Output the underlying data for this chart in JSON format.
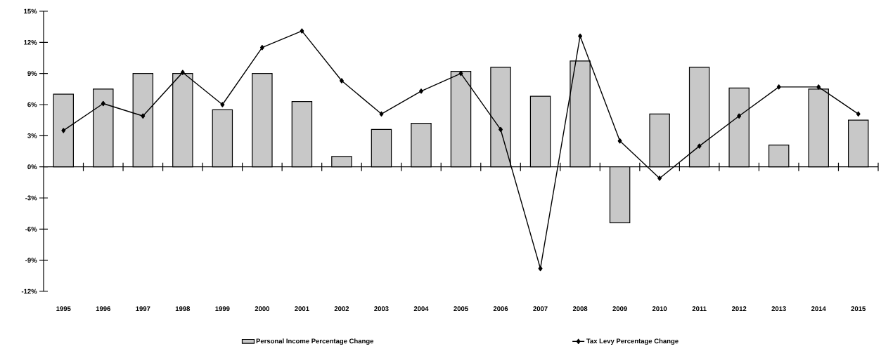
{
  "chart_data": {
    "type": "bar",
    "categories": [
      "1995",
      "1996",
      "1997",
      "1998",
      "1999",
      "2000",
      "2001",
      "2002",
      "2003",
      "2004",
      "2005",
      "2006",
      "2007",
      "2008",
      "2009",
      "2010",
      "2011",
      "2012",
      "2013",
      "2014",
      "2015"
    ],
    "series": [
      {
        "name": "Personal Income Percentage Change",
        "color": "#c8c8c8",
        "values": [
          7.0,
          7.5,
          9.0,
          9.0,
          5.5,
          9.0,
          6.3,
          1.0,
          3.6,
          4.2,
          9.2,
          9.6,
          6.8,
          10.2,
          -5.4,
          5.1,
          9.6,
          7.6,
          2.1,
          7.5,
          4.5
        ]
      },
      {
        "name": "Tax Levy Percentage Change",
        "type": "line",
        "color": "#000000",
        "values": [
          3.5,
          6.1,
          4.9,
          9.1,
          6.0,
          11.5,
          13.1,
          8.3,
          5.1,
          7.3,
          9.0,
          3.6,
          -9.8,
          12.6,
          2.5,
          -1.1,
          2.0,
          4.9,
          7.7,
          7.7,
          5.1
        ]
      }
    ],
    "marker": "diamond",
    "line_style": "solid",
    "legend": "bottom",
    "ylim": [
      -12,
      15
    ],
    "yticks": [
      {
        "value": 15,
        "label": "15%"
      },
      {
        "value": 12,
        "label": "12%"
      },
      {
        "value": 9,
        "label": "9%"
      },
      {
        "value": 6,
        "label": "6%"
      },
      {
        "value": 3,
        "label": "3%"
      },
      {
        "value": 0,
        "label": "0%"
      },
      {
        "value": -3,
        "label": "-3%"
      },
      {
        "value": -6,
        "label": "-6%"
      },
      {
        "value": -9,
        "label": "-9%"
      },
      {
        "value": -12,
        "label": "-12%"
      }
    ]
  }
}
